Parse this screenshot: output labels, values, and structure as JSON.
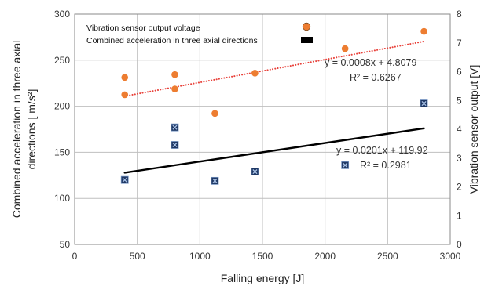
{
  "chart_data": {
    "type": "scatter",
    "xlabel": "Falling energy [J]",
    "ylabel_left": [
      "Combined acceleration in three axial",
      "directions [ m/s²]"
    ],
    "ylabel_right": "Vibration sensor output [V]",
    "xlim": [
      0,
      3000
    ],
    "ylim_left": [
      50,
      300
    ],
    "ylim_right": [
      0,
      8
    ],
    "x_ticks": [
      "0",
      "500",
      "1000",
      "1500",
      "2000",
      "2500",
      "3000"
    ],
    "y_left_ticks": [
      "50",
      "100",
      "150",
      "200",
      "250",
      "300"
    ],
    "y_right_ticks": [
      "0",
      "1",
      "2",
      "3",
      "4",
      "5",
      "6",
      "7",
      "8"
    ],
    "grid": true,
    "legend_position": "top-left",
    "series": [
      {
        "name": "Vibration sensor output voltage",
        "axis": "right",
        "marker": "circle",
        "color": "#ED7D31",
        "points": [
          {
            "x": 400,
            "y": 5.8
          },
          {
            "x": 400,
            "y": 5.2
          },
          {
            "x": 800,
            "y": 5.9
          },
          {
            "x": 800,
            "y": 5.4
          },
          {
            "x": 1120,
            "y": 4.55
          },
          {
            "x": 1440,
            "y": 5.95
          },
          {
            "x": 2160,
            "y": 6.8
          },
          {
            "x": 2790,
            "y": 7.4
          }
        ],
        "trendline": {
          "color": "#E8413A",
          "style": "dotted",
          "x_range": [
            400,
            2790
          ],
          "y_range": [
            5.15,
            7.05
          ]
        },
        "equation": "y = 0.0008x + 4.8079",
        "r2": "R² = 0.6267"
      },
      {
        "name": "Combined acceleration in three axial directions",
        "axis": "left",
        "marker": "square-x",
        "color": "#1F3864",
        "points": [
          {
            "x": 400,
            "y": 120
          },
          {
            "x": 800,
            "y": 177
          },
          {
            "x": 800,
            "y": 158
          },
          {
            "x": 1120,
            "y": 119
          },
          {
            "x": 1440,
            "y": 129
          },
          {
            "x": 2160,
            "y": 136
          },
          {
            "x": 2790,
            "y": 203
          }
        ],
        "trendline": {
          "color": "#000000",
          "style": "solid",
          "x_range": [
            400,
            2790
          ],
          "y_range": [
            127.9,
            176.0
          ]
        },
        "equation": "y = 0.0201x + 119.92",
        "r2": "R² = 0.2981"
      }
    ]
  }
}
